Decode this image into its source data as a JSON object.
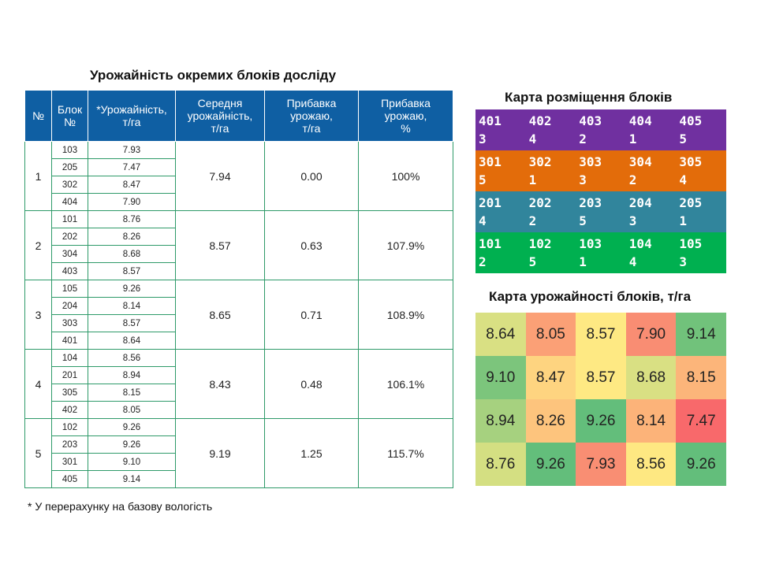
{
  "main_title": "Урожайність окремих блоків досліду",
  "layout_title": "Карта розміщення блоків",
  "yield_title": "Карта урожайності блоків, т/га",
  "footnote": "* У перерахунку  на базову вологість",
  "table": {
    "headers": [
      "№",
      "Блок\n№",
      "*Урожайність,\nт/га",
      "Середня\nурожайність,\nт/га",
      "Прибавка\nурожаю,\nт/га",
      "Прибавка\nурожаю,\n%"
    ],
    "groups": [
      {
        "num": "1",
        "mean": "7.94",
        "gain": "0.00",
        "gain_pct": "100%",
        "rows": [
          {
            "block": "103",
            "yield": "7.93"
          },
          {
            "block": "205",
            "yield": "7.47"
          },
          {
            "block": "302",
            "yield": "8.47"
          },
          {
            "block": "404",
            "yield": "7.90"
          }
        ]
      },
      {
        "num": "2",
        "mean": "8.57",
        "gain": "0.63",
        "gain_pct": "107.9%",
        "rows": [
          {
            "block": "101",
            "yield": "8.76"
          },
          {
            "block": "202",
            "yield": "8.26"
          },
          {
            "block": "304",
            "yield": "8.68"
          },
          {
            "block": "403",
            "yield": "8.57"
          }
        ]
      },
      {
        "num": "3",
        "mean": "8.65",
        "gain": "0.71",
        "gain_pct": "108.9%",
        "rows": [
          {
            "block": "105",
            "yield": "9.26"
          },
          {
            "block": "204",
            "yield": "8.14"
          },
          {
            "block": "303",
            "yield": "8.57"
          },
          {
            "block": "401",
            "yield": "8.64"
          }
        ]
      },
      {
        "num": "4",
        "mean": "8.43",
        "gain": "0.48",
        "gain_pct": "106.1%",
        "rows": [
          {
            "block": "104",
            "yield": "8.56"
          },
          {
            "block": "201",
            "yield": "8.94"
          },
          {
            "block": "305",
            "yield": "8.15"
          },
          {
            "block": "402",
            "yield": "8.05"
          }
        ]
      },
      {
        "num": "5",
        "mean": "9.19",
        "gain": "1.25",
        "gain_pct": "115.7%",
        "rows": [
          {
            "block": "102",
            "yield": "9.26"
          },
          {
            "block": "203",
            "yield": "9.26"
          },
          {
            "block": "301",
            "yield": "9.10"
          },
          {
            "block": "405",
            "yield": "9.14"
          }
        ]
      }
    ]
  },
  "layout_map": {
    "row_colors": [
      "#7030a0",
      "#e36c0a",
      "#31859c",
      "#00b050"
    ],
    "rows": [
      [
        "401\n3",
        "402\n4",
        "403\n2",
        "404\n1",
        "405\n5"
      ],
      [
        "301\n5",
        "302\n1",
        "303\n3",
        "304\n2",
        "305\n4"
      ],
      [
        "201\n4",
        "202\n2",
        "203\n5",
        "204\n3",
        "205\n1"
      ],
      [
        "101\n2",
        "102\n5",
        "103\n1",
        "104\n4",
        "105\n3"
      ]
    ]
  },
  "yield_map": {
    "rows": [
      [
        {
          "value": "8.64",
          "color": "#d9e083"
        },
        {
          "value": "8.05",
          "color": "#fba076"
        },
        {
          "value": "8.57",
          "color": "#fee983"
        },
        {
          "value": "7.90",
          "color": "#f98d73"
        },
        {
          "value": "9.14",
          "color": "#71c27b"
        }
      ],
      [
        {
          "value": "9.10",
          "color": "#7cc57c"
        },
        {
          "value": "8.47",
          "color": "#fed480"
        },
        {
          "value": "8.57",
          "color": "#fee983"
        },
        {
          "value": "8.68",
          "color": "#d9e083"
        },
        {
          "value": "8.15",
          "color": "#fcb57a"
        }
      ],
      [
        {
          "value": "8.94",
          "color": "#a6d17f"
        },
        {
          "value": "8.26",
          "color": "#fdc47d"
        },
        {
          "value": "9.26",
          "color": "#63be7b"
        },
        {
          "value": "8.14",
          "color": "#fcb379"
        },
        {
          "value": "7.47",
          "color": "#f8696b"
        }
      ],
      [
        {
          "value": "8.76",
          "color": "#d4df82"
        },
        {
          "value": "9.26",
          "color": "#63be7b"
        },
        {
          "value": "7.93",
          "color": "#f98e73"
        },
        {
          "value": "8.56",
          "color": "#fee882"
        },
        {
          "value": "9.26",
          "color": "#63be7b"
        }
      ]
    ]
  }
}
